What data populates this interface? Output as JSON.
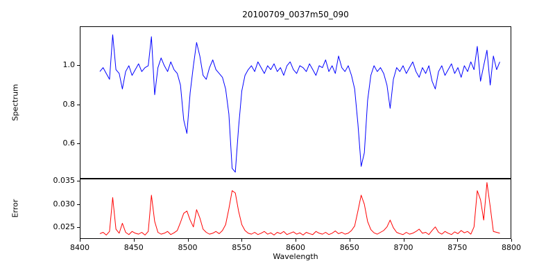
{
  "figure": {
    "background": "#ffffff"
  },
  "chart_data": {
    "type": "line",
    "title": "20100709_0037m50_090",
    "xlabel": "Wavelength",
    "grid": false,
    "legend": "none",
    "xlim": [
      8400,
      8800
    ],
    "xticks": [
      8400,
      8450,
      8500,
      8550,
      8600,
      8650,
      8700,
      8750,
      8800
    ],
    "panels": [
      {
        "name": "spectrum",
        "ylabel": "Spectrum",
        "ylim": [
          0.42,
          1.2
        ],
        "yticks": [
          0.6,
          0.8,
          1.0
        ],
        "ytick_labels": [
          "0.6",
          "0.8",
          "1.0"
        ],
        "color": "#0000ff"
      },
      {
        "name": "error",
        "ylabel": "Error",
        "ylim": [
          0.0225,
          0.0355
        ],
        "yticks": [
          0.025,
          0.03,
          0.035
        ],
        "ytick_labels": [
          "0.025",
          "0.030",
          "0.035"
        ],
        "color": "#ff0000"
      }
    ],
    "x": [
      8418,
      8421,
      8424,
      8427,
      8430,
      8433,
      8436,
      8439,
      8442,
      8445,
      8448,
      8451,
      8454,
      8457,
      8460,
      8463,
      8466,
      8469,
      8472,
      8475,
      8478,
      8481,
      8484,
      8487,
      8490,
      8493,
      8496,
      8499,
      8502,
      8505,
      8508,
      8511,
      8514,
      8517,
      8520,
      8523,
      8526,
      8529,
      8532,
      8535,
      8538,
      8541,
      8544,
      8547,
      8550,
      8553,
      8556,
      8559,
      8562,
      8565,
      8568,
      8571,
      8574,
      8577,
      8580,
      8583,
      8586,
      8589,
      8592,
      8595,
      8598,
      8601,
      8604,
      8607,
      8610,
      8613,
      8616,
      8619,
      8622,
      8625,
      8628,
      8631,
      8634,
      8637,
      8640,
      8643,
      8646,
      8649,
      8652,
      8655,
      8658,
      8661,
      8664,
      8667,
      8670,
      8673,
      8676,
      8679,
      8682,
      8685,
      8688,
      8691,
      8694,
      8697,
      8700,
      8703,
      8706,
      8709,
      8712,
      8715,
      8718,
      8721,
      8724,
      8727,
      8730,
      8733,
      8736,
      8739,
      8742,
      8745,
      8748,
      8751,
      8754,
      8757,
      8760,
      8763,
      8766,
      8769,
      8772,
      8775,
      8778,
      8781,
      8784,
      8787,
      8790
    ],
    "series": [
      {
        "name": "spectrum",
        "values": [
          0.97,
          0.99,
          0.96,
          0.93,
          1.16,
          0.98,
          0.96,
          0.88,
          0.97,
          1.0,
          0.95,
          0.98,
          1.01,
          0.97,
          0.99,
          1.0,
          1.15,
          0.85,
          0.99,
          1.04,
          1.0,
          0.97,
          1.02,
          0.98,
          0.96,
          0.9,
          0.72,
          0.65,
          0.86,
          1.0,
          1.12,
          1.05,
          0.95,
          0.93,
          0.99,
          1.03,
          0.98,
          0.96,
          0.94,
          0.88,
          0.75,
          0.47,
          0.45,
          0.68,
          0.87,
          0.95,
          0.98,
          1.0,
          0.97,
          1.02,
          0.99,
          0.96,
          1.0,
          0.98,
          1.01,
          0.97,
          0.99,
          0.95,
          1.0,
          1.02,
          0.98,
          0.96,
          1.0,
          0.99,
          0.97,
          1.01,
          0.98,
          0.95,
          1.0,
          0.99,
          1.03,
          0.97,
          1.0,
          0.96,
          1.05,
          0.99,
          0.97,
          1.0,
          0.95,
          0.88,
          0.7,
          0.48,
          0.55,
          0.82,
          0.95,
          1.0,
          0.97,
          0.99,
          0.96,
          0.9,
          0.78,
          0.93,
          0.99,
          0.97,
          1.0,
          0.96,
          0.99,
          1.02,
          0.97,
          0.94,
          0.99,
          0.96,
          1.0,
          0.92,
          0.88,
          0.97,
          1.0,
          0.95,
          0.98,
          1.01,
          0.96,
          0.99,
          0.94,
          1.0,
          0.97,
          1.02,
          0.98,
          1.1,
          0.92,
          1.0,
          1.08,
          0.9,
          1.05,
          0.98,
          1.02
        ]
      },
      {
        "name": "error",
        "values": [
          0.0235,
          0.0238,
          0.0232,
          0.024,
          0.0315,
          0.0245,
          0.0236,
          0.0258,
          0.0238,
          0.0233,
          0.024,
          0.0236,
          0.0234,
          0.0238,
          0.0232,
          0.024,
          0.032,
          0.0262,
          0.0238,
          0.0234,
          0.0236,
          0.024,
          0.0233,
          0.0237,
          0.0242,
          0.026,
          0.028,
          0.0285,
          0.0265,
          0.025,
          0.0288,
          0.027,
          0.0245,
          0.0238,
          0.0234,
          0.0236,
          0.024,
          0.0235,
          0.0242,
          0.0255,
          0.029,
          0.033,
          0.0325,
          0.0285,
          0.0255,
          0.0242,
          0.0236,
          0.0234,
          0.0238,
          0.0233,
          0.0236,
          0.024,
          0.0234,
          0.0237,
          0.0232,
          0.0238,
          0.0235,
          0.024,
          0.0233,
          0.0236,
          0.0239,
          0.0234,
          0.0237,
          0.0232,
          0.0238,
          0.0235,
          0.0233,
          0.024,
          0.0236,
          0.0234,
          0.0238,
          0.0233,
          0.0236,
          0.0241,
          0.0235,
          0.0238,
          0.0234,
          0.0236,
          0.0242,
          0.0252,
          0.0285,
          0.032,
          0.03,
          0.0262,
          0.0244,
          0.0237,
          0.0234,
          0.0238,
          0.0242,
          0.025,
          0.0265,
          0.0248,
          0.0238,
          0.0235,
          0.0233,
          0.0238,
          0.0234,
          0.0236,
          0.024,
          0.0245,
          0.0236,
          0.0238,
          0.0233,
          0.0242,
          0.025,
          0.0238,
          0.0234,
          0.024,
          0.0236,
          0.0233,
          0.0239,
          0.0235,
          0.0242,
          0.0237,
          0.024,
          0.0234,
          0.025,
          0.033,
          0.031,
          0.0265,
          0.0348,
          0.0295,
          0.024,
          0.0238,
          0.0236
        ]
      }
    ]
  }
}
